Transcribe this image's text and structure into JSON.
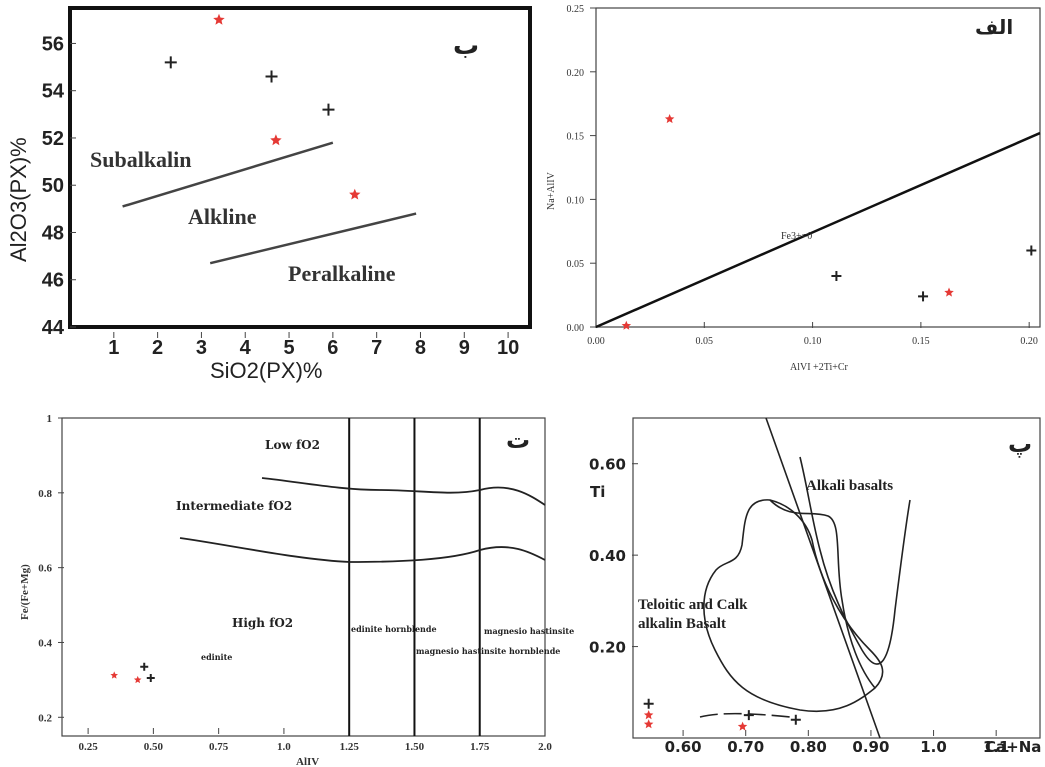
{
  "colors": {
    "red": "#e53935",
    "black": "#222222"
  },
  "chart_data": [
    {
      "type": "scatter",
      "panel": "top-left",
      "label": "ب",
      "xlabel": "SiO2(PX)%",
      "ylabel": "Al2O3(PX)%",
      "xlim": [
        0,
        10.5
      ],
      "ylim": [
        44,
        57.5
      ],
      "xticks": [
        "1",
        "2",
        "3",
        "4",
        "5",
        "6",
        "7",
        "8",
        "9",
        "10"
      ],
      "yticks": [
        "44",
        "46",
        "48",
        "50",
        "52",
        "54",
        "56"
      ],
      "fields": [
        "Subalkalin",
        "Alkline",
        "Peralkaline"
      ],
      "series": [
        {
          "marker": "plus",
          "color": "black",
          "x": [
            2.3,
            4.6,
            5.9
          ],
          "y": [
            55.2,
            54.6,
            53.2
          ]
        },
        {
          "marker": "star",
          "color": "red",
          "x": [
            3.4,
            4.7,
            6.5
          ],
          "y": [
            57.0,
            51.9,
            49.6
          ]
        }
      ],
      "lines": [
        {
          "x": [
            1.2,
            6.0
          ],
          "y": [
            49.1,
            51.8
          ]
        },
        {
          "x": [
            3.2,
            7.9
          ],
          "y": [
            46.7,
            48.8
          ]
        }
      ]
    },
    {
      "type": "scatter",
      "panel": "top-right",
      "label": "الف",
      "xlabel": "AlVI +2Ti+Cr",
      "ylabel": "Na+AlIV",
      "xlim": [
        0,
        0.205
      ],
      "ylim": [
        0,
        0.25
      ],
      "xticks": [
        "0.00",
        "0.05",
        "0.10",
        "0.15",
        "0.20"
      ],
      "yticks": [
        "0.00",
        "0.05",
        "0.10",
        "0.15",
        "0.20",
        "0.25"
      ],
      "line_label": "Fe3+=0",
      "series": [
        {
          "marker": "plus",
          "color": "black",
          "x": [
            0.111,
            0.151,
            0.201
          ],
          "y": [
            0.04,
            0.024,
            0.06
          ]
        },
        {
          "marker": "star",
          "color": "red",
          "x": [
            0.034,
            0.163,
            0.014
          ],
          "y": [
            0.163,
            0.027,
            0.001
          ]
        }
      ],
      "lines": [
        {
          "x": [
            0.0,
            0.205
          ],
          "y": [
            0.0,
            0.152
          ]
        }
      ]
    },
    {
      "type": "scatter",
      "panel": "bottom-left",
      "label": "ت",
      "xlabel": "AlIV",
      "ylabel": "Fe/(Fe+Mg)",
      "xlim": [
        0.15,
        2.0
      ],
      "ylim": [
        0.15,
        1.0
      ],
      "xticks": [
        "0.25",
        "0.50",
        "0.75",
        "1.0",
        "1.25",
        "1.50",
        "1.75",
        "2.0"
      ],
      "yticks": [
        "0.2",
        "0.4",
        "0.6",
        "0.8",
        "1"
      ],
      "fields": [
        "Low fO2",
        "Intermediate fO2",
        "High fO2",
        "edinite",
        "edinite hornblende",
        "magnesio hastinsite hornblende",
        "magnesio hastinsite"
      ],
      "series": [
        {
          "marker": "plus",
          "color": "black",
          "x": [
            0.465,
            0.49
          ],
          "y": [
            0.335,
            0.305
          ]
        },
        {
          "marker": "star",
          "color": "red",
          "x": [
            0.35,
            0.44
          ],
          "y": [
            0.312,
            0.3
          ]
        }
      ],
      "vlines": [
        1.25,
        1.5,
        1.75
      ]
    },
    {
      "type": "scatter",
      "panel": "bottom-right",
      "label": "پ",
      "xlabel": "Ca+Na",
      "ylabel": "Ti",
      "xlim": [
        0.52,
        1.17
      ],
      "ylim": [
        0.0,
        0.7
      ],
      "xticks": [
        "0.60",
        "0.70",
        "0.80",
        "0.90",
        "1.0",
        "1.1"
      ],
      "yticks": [
        "0.20",
        "0.40",
        "0.60"
      ],
      "fields": [
        "Alkali basalts",
        "Teloitic and Calk",
        "alkalin Basalt"
      ],
      "series": [
        {
          "marker": "plus",
          "color": "black",
          "x": [
            0.545,
            0.705,
            0.78
          ],
          "y": [
            0.075,
            0.05,
            0.04
          ]
        },
        {
          "marker": "star",
          "color": "red",
          "x": [
            0.545,
            0.545,
            0.695
          ],
          "y": [
            0.05,
            0.03,
            0.025
          ]
        }
      ]
    }
  ]
}
